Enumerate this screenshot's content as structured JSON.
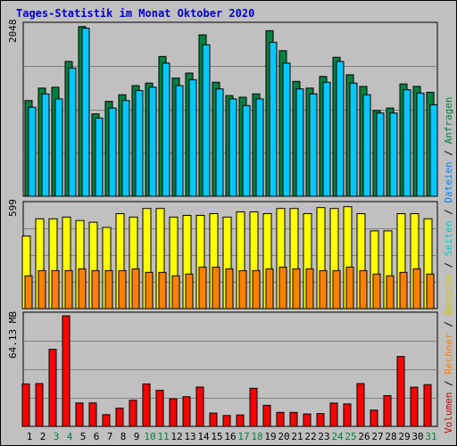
{
  "title": "Tages-Statistik im Monat Oktober 2020",
  "colors": {
    "anfragen": "#008040",
    "dateien": "#00c8ff",
    "seiten": "#00ffff",
    "besuche": "#ffff00",
    "rechner": "#ff8000",
    "volumen": "#ff0000",
    "weekend_label": "#008040",
    "label": "#000000"
  },
  "legend": [
    {
      "text": "Volumen",
      "color": "#cc0000"
    },
    {
      "text": " / ",
      "color": "#000000"
    },
    {
      "text": "Rechner",
      "color": "#ff8000"
    },
    {
      "text": " / ",
      "color": "#000000"
    },
    {
      "text": "Besuche",
      "color": "#cccc00"
    },
    {
      "text": " / ",
      "color": "#000000"
    },
    {
      "text": "Seiten",
      "color": "#00cccc"
    },
    {
      "text": " / ",
      "color": "#000000"
    },
    {
      "text": "Dateien",
      "color": "#0080ff"
    },
    {
      "text": " / ",
      "color": "#000000"
    },
    {
      "text": "Anfragen",
      "color": "#008040"
    }
  ],
  "chart_data": [
    {
      "type": "bar",
      "name": "hits",
      "ymax_label": "2048",
      "ymax": 2048,
      "categories": [
        "1",
        "2",
        "3",
        "4",
        "5",
        "6",
        "7",
        "8",
        "9",
        "10",
        "11",
        "12",
        "13",
        "14",
        "15",
        "16",
        "17",
        "18",
        "19",
        "20",
        "21",
        "22",
        "23",
        "24",
        "25",
        "26",
        "27",
        "28",
        "29",
        "30",
        "31"
      ],
      "weekend": [
        3,
        4,
        10,
        11,
        17,
        18,
        24,
        25,
        31
      ],
      "series": [
        {
          "name": "Anfragen",
          "values": [
            1150,
            1300,
            1310,
            1620,
            2040,
            990,
            1140,
            1220,
            1330,
            1360,
            1680,
            1420,
            1480,
            1940,
            1370,
            1210,
            1190,
            1230,
            1990,
            1750,
            1380,
            1300,
            1440,
            1670,
            1460,
            1320,
            1030,
            1060,
            1350,
            1320,
            1250
          ]
        },
        {
          "name": "Dateien",
          "values": [
            1070,
            1230,
            1170,
            1540,
            2020,
            940,
            1060,
            1150,
            1270,
            1310,
            1600,
            1330,
            1400,
            1820,
            1290,
            1170,
            1090,
            1170,
            1850,
            1600,
            1290,
            1230,
            1370,
            1620,
            1360,
            1220,
            1000,
            1000,
            1280,
            1240,
            1100
          ]
        }
      ]
    },
    {
      "type": "bar",
      "name": "visits",
      "ymax_label": "599",
      "ymax": 599,
      "series": [
        {
          "name": "Besuche",
          "values": [
            420,
            520,
            520,
            530,
            510,
            500,
            470,
            550,
            530,
            580,
            580,
            530,
            540,
            540,
            550,
            530,
            560,
            560,
            550,
            580,
            580,
            550,
            585,
            580,
            590,
            550,
            450,
            450,
            550,
            550,
            520
          ]
        },
        {
          "name": "Rechner",
          "values": [
            190,
            220,
            220,
            220,
            230,
            220,
            220,
            220,
            230,
            210,
            210,
            190,
            200,
            240,
            240,
            230,
            220,
            220,
            230,
            240,
            230,
            230,
            220,
            220,
            240,
            220,
            200,
            190,
            210,
            230,
            200
          ]
        }
      ]
    },
    {
      "type": "bar",
      "name": "volume",
      "ymax_label": "64.13 MB",
      "ymax": 64.13,
      "series": [
        {
          "name": "Volumen",
          "values": [
            24.6,
            24.8,
            44.7,
            64.1,
            13.6,
            13.6,
            6.8,
            10.6,
            15.2,
            24.6,
            20.9,
            16.0,
            17.2,
            22.8,
            7.7,
            6.3,
            6.6,
            22.1,
            12.2,
            8.1,
            8.1,
            7.2,
            7.4,
            13.5,
            13.0,
            24.8,
            9.4,
            17.8,
            40.5,
            22.7,
            24.2
          ]
        }
      ]
    }
  ]
}
